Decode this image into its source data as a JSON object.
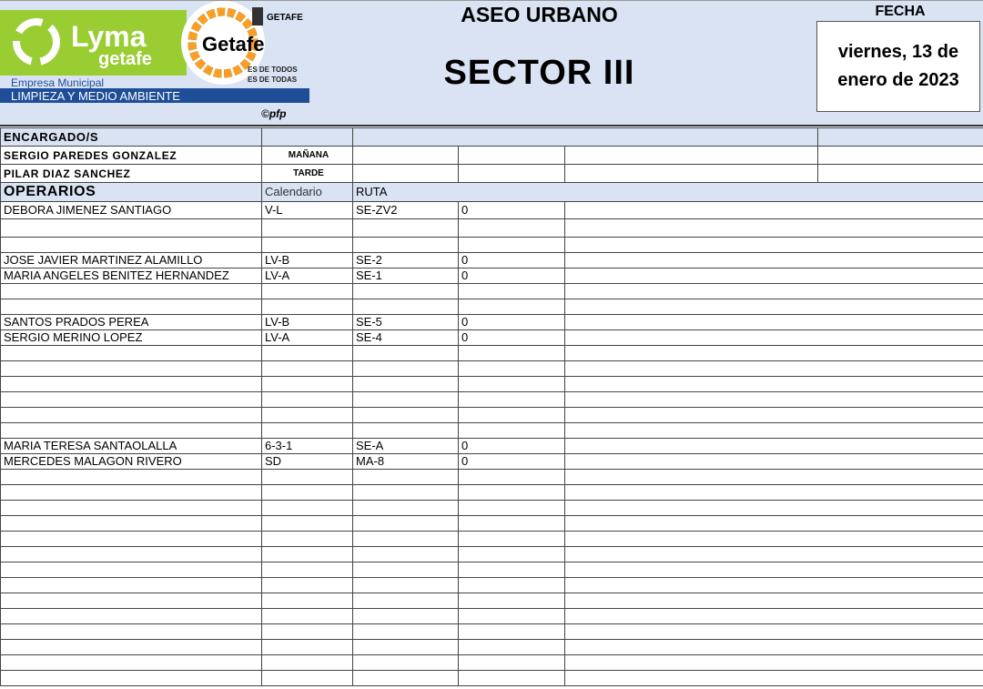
{
  "logo": {
    "brand": "LYMA getafe",
    "subtitle": "Empresa Municipal",
    "band": "LIMPIEZA Y MEDIO AMBIENTE",
    "getafe": "Getafe",
    "ayto": "GETAFE AYUNTAMIENTO",
    "slogan1": "ES DE TODOS",
    "slogan2": "ES DE TODAS",
    "credit": "©pfp"
  },
  "header": {
    "title": "ASEO URBANO",
    "sector": "SECTOR III",
    "fecha_label": "FECHA",
    "fecha_line1": "viernes, 13 de",
    "fecha_line2": "enero de 2023"
  },
  "encargados": {
    "label": "ENCARGADO/S",
    "rows": [
      {
        "name": "SERGIO PAREDES GONZALEZ",
        "turno": "MAÑANA"
      },
      {
        "name": "PILAR DIAZ SANCHEZ",
        "turno": "TARDE"
      }
    ]
  },
  "operarios": {
    "label": "OPERARIOS",
    "col_calendario": "Calendario",
    "col_ruta": "RUTA",
    "rows": [
      {
        "name": "DEBORA JIMENEZ SANTIAGO",
        "cal": "V-L",
        "ruta": "SE-ZV2",
        "val": "0"
      },
      {
        "name": "",
        "cal": "",
        "ruta": "",
        "val": ""
      },
      {
        "name": "",
        "cal": "",
        "ruta": "",
        "val": ""
      },
      {
        "name": "JOSE JAVIER MARTINEZ ALAMILLO",
        "cal": "LV-B",
        "ruta": "SE-2",
        "val": "0"
      },
      {
        "name": "MARIA ANGELES BENITEZ HERNANDEZ",
        "cal": "LV-A",
        "ruta": "SE-1",
        "val": "0"
      },
      {
        "name": "",
        "cal": "",
        "ruta": "",
        "val": ""
      },
      {
        "name": "",
        "cal": "",
        "ruta": "",
        "val": ""
      },
      {
        "name": "SANTOS PRADOS PEREA",
        "cal": "LV-B",
        "ruta": "SE-5",
        "val": "0"
      },
      {
        "name": "SERGIO MERINO LOPEZ",
        "cal": "LV-A",
        "ruta": "SE-4",
        "val": "0"
      },
      {
        "name": "",
        "cal": "",
        "ruta": "",
        "val": ""
      },
      {
        "name": "",
        "cal": "",
        "ruta": "",
        "val": ""
      },
      {
        "name": "",
        "cal": "",
        "ruta": "",
        "val": ""
      },
      {
        "name": "",
        "cal": "",
        "ruta": "",
        "val": ""
      },
      {
        "name": "",
        "cal": "",
        "ruta": "",
        "val": ""
      },
      {
        "name": "",
        "cal": "",
        "ruta": "",
        "val": ""
      },
      {
        "name": "MARIA TERESA SANTAOLALLA",
        "cal": "6-3-1",
        "ruta": "SE-A",
        "val": "0"
      },
      {
        "name": "MERCEDES MALAGON RIVERO",
        "cal": "SD",
        "ruta": "MA-8",
        "val": "0"
      },
      {
        "name": "",
        "cal": "",
        "ruta": "",
        "val": ""
      },
      {
        "name": "",
        "cal": "",
        "ruta": "",
        "val": ""
      },
      {
        "name": "",
        "cal": "",
        "ruta": "",
        "val": ""
      },
      {
        "name": "",
        "cal": "",
        "ruta": "",
        "val": ""
      },
      {
        "name": "",
        "cal": "",
        "ruta": "",
        "val": ""
      },
      {
        "name": "",
        "cal": "",
        "ruta": "",
        "val": ""
      },
      {
        "name": "",
        "cal": "",
        "ruta": "",
        "val": ""
      },
      {
        "name": "",
        "cal": "",
        "ruta": "",
        "val": ""
      },
      {
        "name": "",
        "cal": "",
        "ruta": "",
        "val": ""
      },
      {
        "name": "",
        "cal": "",
        "ruta": "",
        "val": ""
      },
      {
        "name": "",
        "cal": "",
        "ruta": "",
        "val": ""
      },
      {
        "name": "",
        "cal": "",
        "ruta": "",
        "val": ""
      },
      {
        "name": "",
        "cal": "",
        "ruta": "",
        "val": ""
      },
      {
        "name": "",
        "cal": "",
        "ruta": "",
        "val": ""
      }
    ]
  },
  "colors": {
    "header_bg": "#dae3f3",
    "lyma_green": "#9acd32",
    "band_blue": "#1f4e99"
  }
}
